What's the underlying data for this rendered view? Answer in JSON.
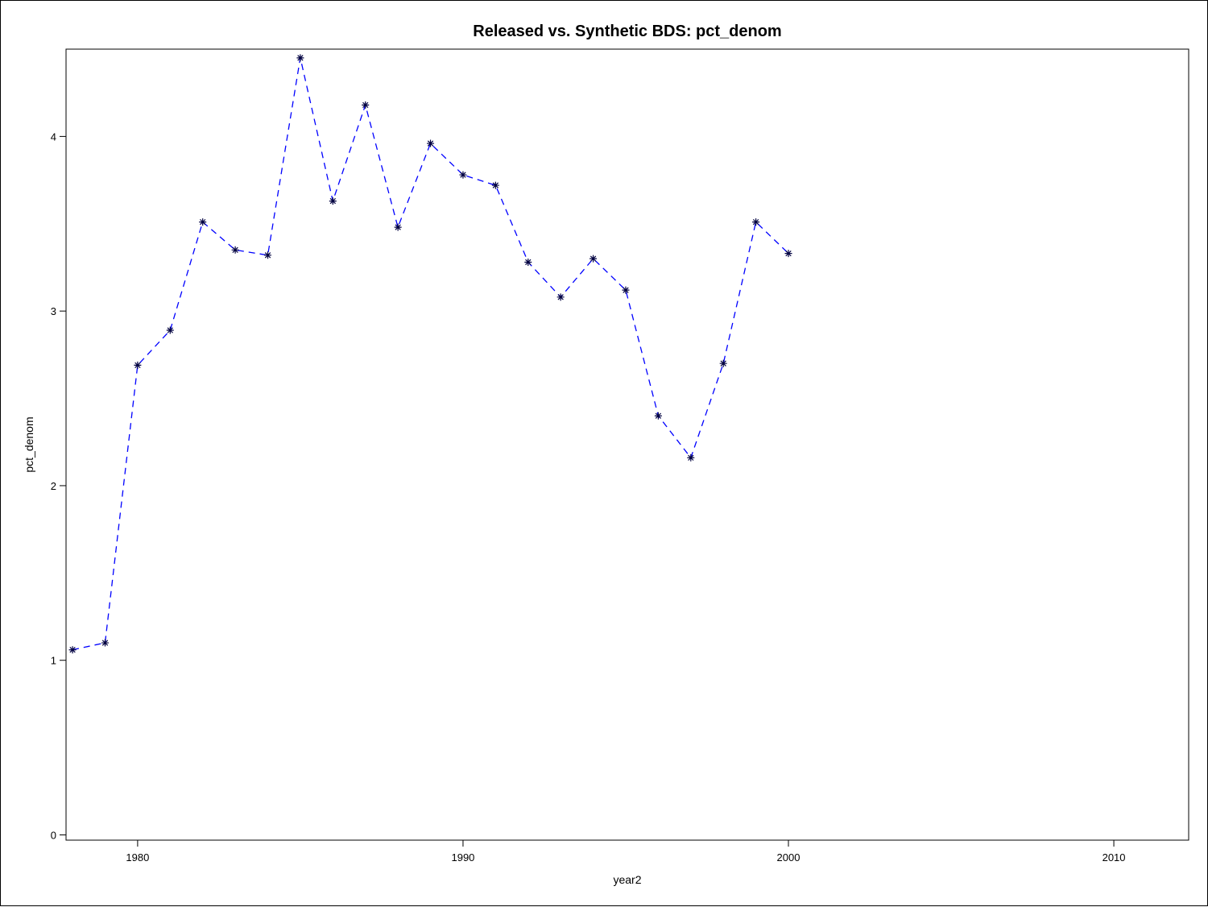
{
  "chart_data": {
    "type": "line",
    "title": "Released vs. Synthetic BDS: pct_denom",
    "xlabel": "year2",
    "ylabel": "pct_denom",
    "xlim": [
      1977.8,
      2012.3
    ],
    "ylim": [
      -0.03,
      4.5
    ],
    "x_ticks": [
      1980,
      1990,
      2000,
      2010
    ],
    "y_ticks": [
      0,
      1,
      2,
      3,
      4
    ],
    "grid": false,
    "legend": "none",
    "series": [
      {
        "line_color": "#0000ff",
        "line_style": "dashed",
        "marker": "star",
        "marker_color": "#000040",
        "x": [
          1978,
          1979,
          1980,
          1981,
          1982,
          1983,
          1984,
          1985,
          1986,
          1987,
          1988,
          1989,
          1990,
          1991,
          1992,
          1993,
          1994,
          1995,
          1996,
          1997,
          1998,
          1999,
          2000
        ],
        "y": [
          1.06,
          1.1,
          2.69,
          2.89,
          3.51,
          3.35,
          3.32,
          4.45,
          3.63,
          4.18,
          3.48,
          3.96,
          3.78,
          3.72,
          3.28,
          3.08,
          3.3,
          3.12,
          2.4,
          2.16,
          2.7,
          3.51,
          3.33
        ]
      }
    ]
  }
}
